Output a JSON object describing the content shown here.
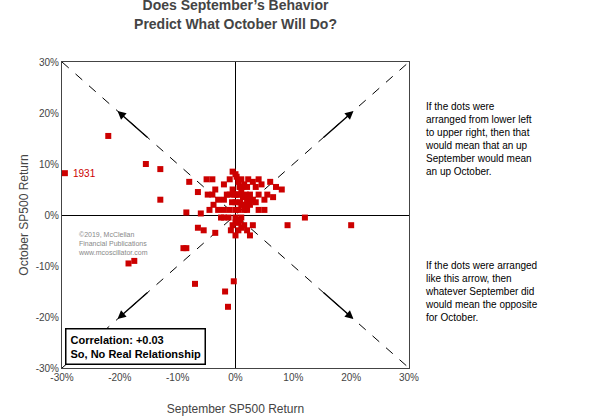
{
  "chart_data": {
    "type": "scatter",
    "title": "Does September’s Behavior\nPredict What October Will Do?",
    "xlabel": "September SP500 Return",
    "ylabel": "October SP500 Return",
    "xlim": [
      -0.3,
      0.3
    ],
    "ylim": [
      -0.3,
      0.3
    ],
    "xticks": [
      {
        "value": -0.3,
        "label": "-30%"
      },
      {
        "value": -0.2,
        "label": "-20%"
      },
      {
        "value": -0.1,
        "label": "-10%"
      },
      {
        "value": 0.0,
        "label": "0%"
      },
      {
        "value": 0.1,
        "label": "10%"
      },
      {
        "value": 0.2,
        "label": "20%"
      },
      {
        "value": 0.3,
        "label": "30%"
      }
    ],
    "yticks": [
      {
        "value": -0.3,
        "label": "-30%"
      },
      {
        "value": -0.2,
        "label": "-20%"
      },
      {
        "value": -0.1,
        "label": "-10%"
      },
      {
        "value": 0.0,
        "label": "0%"
      },
      {
        "value": 0.1,
        "label": "10%"
      },
      {
        "value": 0.2,
        "label": "20%"
      },
      {
        "value": 0.3,
        "label": "30%"
      }
    ],
    "grid": false,
    "series": [
      {
        "type": "scatter",
        "color": "#CC0000",
        "marker": "square",
        "x": [
          -0.295,
          -0.22,
          -0.185,
          -0.175,
          -0.155,
          -0.13,
          -0.13,
          -0.09,
          -0.085,
          -0.085,
          -0.08,
          -0.07,
          -0.065,
          -0.065,
          -0.06,
          -0.055,
          -0.05,
          -0.048,
          -0.045,
          -0.04,
          -0.04,
          -0.038,
          -0.035,
          -0.035,
          -0.03,
          -0.03,
          -0.025,
          -0.02,
          -0.02,
          -0.02,
          -0.02,
          -0.018,
          -0.015,
          -0.013,
          -0.012,
          -0.01,
          -0.01,
          -0.01,
          -0.008,
          -0.006,
          -0.005,
          -0.005,
          -0.005,
          -0.003,
          -0.002,
          0.0,
          0.0,
          0.0,
          0.0,
          0.0,
          0.0,
          0.0,
          0.002,
          0.003,
          0.005,
          0.005,
          0.005,
          0.005,
          0.005,
          0.007,
          0.008,
          0.008,
          0.01,
          0.01,
          0.01,
          0.01,
          0.01,
          0.012,
          0.013,
          0.015,
          0.015,
          0.015,
          0.018,
          0.018,
          0.02,
          0.02,
          0.02,
          0.02,
          0.022,
          0.025,
          0.025,
          0.025,
          0.03,
          0.03,
          0.03,
          0.035,
          0.035,
          0.04,
          0.04,
          0.04,
          0.045,
          0.05,
          0.05,
          0.055,
          0.06,
          0.065,
          0.07,
          0.08,
          0.09,
          0.12,
          0.2
        ],
        "values": [
          0.082,
          0.155,
          -0.095,
          -0.09,
          0.1,
          0.09,
          0.03,
          -0.065,
          -0.065,
          0.005,
          0.065,
          -0.135,
          0.045,
          -0.025,
          0.003,
          -0.03,
          0.07,
          0.04,
          0.01,
          0.07,
          0.04,
          0.02,
          0.05,
          -0.035,
          0.03,
          0.01,
          -0.005,
          0.06,
          0.03,
          0.01,
          -0.005,
          -0.15,
          0.04,
          -0.18,
          -0.005,
          0.07,
          0.04,
          0.01,
          -0.03,
          0.025,
          0.085,
          0.05,
          -0.02,
          -0.13,
          0.04,
          0.08,
          0.04,
          0.025,
          0.01,
          -0.005,
          -0.015,
          -0.04,
          0.075,
          0.04,
          0.065,
          0.04,
          0.01,
          -0.015,
          -0.03,
          0.055,
          0.025,
          -0.01,
          0.07,
          0.045,
          0.02,
          -0.005,
          -0.025,
          0.055,
          0.035,
          0.06,
          0.01,
          -0.02,
          0.04,
          0.02,
          0.055,
          0.03,
          0.01,
          -0.03,
          0.07,
          0.04,
          0.02,
          -0.04,
          0.065,
          0.03,
          -0.02,
          0.055,
          0.025,
          0.07,
          0.04,
          0.01,
          0.06,
          0.03,
          0.01,
          0.04,
          0.065,
          0.035,
          0.055,
          0.05,
          -0.02,
          -0.005,
          -0.02
        ]
      },
      {
        "type": "line",
        "color": "#000000",
        "line_style": "dashed",
        "x": [
          -0.3,
          0.3
        ],
        "values": [
          -0.3,
          0.3
        ]
      },
      {
        "type": "line",
        "color": "#000000",
        "line_style": "dashed",
        "x": [
          -0.3,
          0.3
        ],
        "values": [
          0.3,
          -0.3
        ]
      }
    ],
    "point_label": {
      "text": "1931",
      "x": -0.295,
      "y": 0.082,
      "color": "#CC0000"
    },
    "copyright": {
      "text": "©2019, McClellan\nFinancial Publications\nwww.mcoscillator.com",
      "color": "#888888"
    },
    "notes": [
      "If the dots were\narranged from lower left\nto upper right, then that\nwould mean that an up\nSeptember would mean\nan up October.",
      "If the dots were arranged\nlike this arrow, then\nwhatever September did\nwould mean the opposite\nfor October."
    ],
    "correlation": "Correlation: +0.03\nSo, No Real Relationship"
  }
}
